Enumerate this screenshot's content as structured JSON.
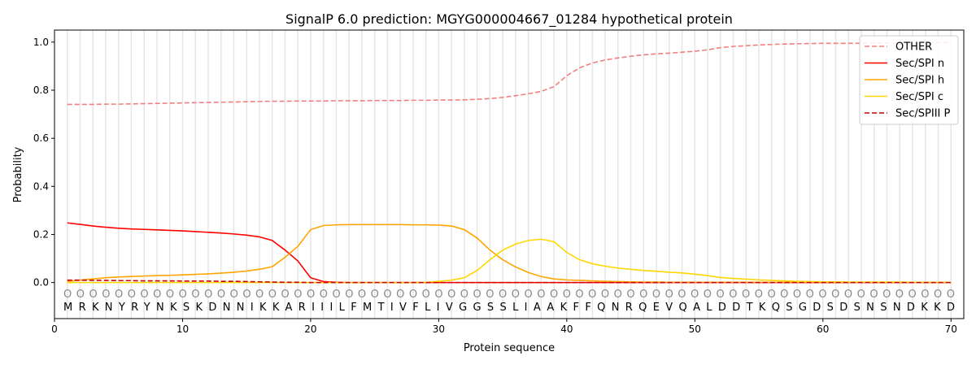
{
  "chart_data": {
    "type": "line",
    "title": "SignalP 6.0 prediction: MGYG000004667_01284 hypothetical protein",
    "xlabel": "Protein sequence",
    "ylabel": "Probability",
    "xlim": [
      0,
      71
    ],
    "ylim": [
      -0.15,
      1.05
    ],
    "xticks": [
      0,
      10,
      20,
      30,
      40,
      50,
      60,
      70
    ],
    "yticks": [
      "0.0",
      "0.2",
      "0.4",
      "0.6",
      "0.8",
      "1.0"
    ],
    "grid": "vertical lines at each residue",
    "legend_position": "top-right",
    "sequence": "MRKNYRYNKSKDNNIKKARIIILFMTIVFLIVGGSSLIAAKFFQNRQEVQALDDTKQSGDSDSNSNDKKD",
    "predicted_labels": "OOOOOOOOOOOOOOOOOOOOOOOOOOOOOOOOOOOOOOOOOOOOOOOOOOOOOOOOOOOOOOOOOOOOOO",
    "series": [
      {
        "name": "OTHER",
        "color": "#f08080",
        "dash": true,
        "values": [
          0.741,
          0.741,
          0.741,
          0.742,
          0.742,
          0.743,
          0.744,
          0.745,
          0.746,
          0.747,
          0.748,
          0.749,
          0.75,
          0.751,
          0.752,
          0.753,
          0.754,
          0.754,
          0.755,
          0.755,
          0.755,
          0.756,
          0.756,
          0.756,
          0.757,
          0.757,
          0.757,
          0.758,
          0.758,
          0.759,
          0.759,
          0.76,
          0.762,
          0.765,
          0.77,
          0.777,
          0.785,
          0.795,
          0.815,
          0.86,
          0.893,
          0.913,
          0.926,
          0.934,
          0.941,
          0.947,
          0.951,
          0.954,
          0.958,
          0.962,
          0.968,
          0.977,
          0.982,
          0.985,
          0.988,
          0.99,
          0.992,
          0.993,
          0.994,
          0.995,
          0.995,
          0.995,
          0.995,
          0.996,
          0.996,
          0.996,
          0.997,
          0.997,
          0.998,
          0.998
        ]
      },
      {
        "name": "Sec/SPI n",
        "color": "#ff0000",
        "dash": false,
        "values": [
          0.248,
          0.242,
          0.235,
          0.23,
          0.226,
          0.223,
          0.221,
          0.219,
          0.217,
          0.215,
          0.212,
          0.209,
          0.206,
          0.202,
          0.197,
          0.19,
          0.175,
          0.135,
          0.09,
          0.02,
          0.004,
          0.001,
          0,
          0,
          0,
          0,
          0,
          0,
          0,
          0,
          0,
          0,
          0,
          0,
          0,
          0,
          0,
          0,
          0,
          0,
          0,
          0,
          0,
          0,
          0,
          0,
          0,
          0,
          0,
          0,
          0,
          0,
          0,
          0,
          0,
          0,
          0,
          0,
          0,
          0,
          0,
          0,
          0,
          0,
          0,
          0,
          0,
          0,
          0,
          0
        ]
      },
      {
        "name": "Sec/SPI h",
        "color": "#ffa500",
        "dash": false,
        "values": [
          0.005,
          0.01,
          0.015,
          0.02,
          0.023,
          0.025,
          0.027,
          0.029,
          0.03,
          0.032,
          0.034,
          0.036,
          0.039,
          0.043,
          0.048,
          0.055,
          0.066,
          0.105,
          0.15,
          0.22,
          0.237,
          0.24,
          0.241,
          0.241,
          0.241,
          0.241,
          0.241,
          0.24,
          0.24,
          0.239,
          0.235,
          0.22,
          0.185,
          0.135,
          0.095,
          0.065,
          0.042,
          0.025,
          0.015,
          0.011,
          0.009,
          0.007,
          0.005,
          0.004,
          0.003,
          0.002,
          0.002,
          0.001,
          0.001,
          0.001,
          0.001,
          0.001,
          0.001,
          0.001,
          0.001,
          0.001,
          0.001,
          0.001,
          0.001,
          0.001,
          0.001,
          0.001,
          0.001,
          0.001,
          0.001,
          0.001,
          0.001,
          0.001,
          0.001,
          0.001
        ]
      },
      {
        "name": "Sec/SPI c",
        "color": "#ffd700",
        "dash": false,
        "values": [
          0,
          0,
          0,
          0,
          0,
          0,
          0,
          0,
          0,
          0,
          0,
          0,
          0,
          0,
          0,
          0,
          0,
          0,
          0,
          0,
          0,
          0,
          0,
          0,
          0,
          0,
          0,
          0,
          0.001,
          0.005,
          0.01,
          0.02,
          0.05,
          0.095,
          0.135,
          0.16,
          0.175,
          0.18,
          0.17,
          0.125,
          0.095,
          0.078,
          0.068,
          0.06,
          0.055,
          0.05,
          0.047,
          0.043,
          0.04,
          0.035,
          0.029,
          0.021,
          0.017,
          0.014,
          0.011,
          0.009,
          0.007,
          0.005,
          0.004,
          0.003,
          0.003,
          0.002,
          0.002,
          0.002,
          0.002,
          0.002,
          0.001,
          0.001,
          0.001,
          0.001
        ]
      },
      {
        "name": "Sec/SPIII P",
        "color": "#cc0000",
        "dash": true,
        "values": [
          0.01,
          0.01,
          0.009,
          0.009,
          0.008,
          0.008,
          0.007,
          0.007,
          0.007,
          0.006,
          0.006,
          0.006,
          0.005,
          0.005,
          0.004,
          0.003,
          0.002,
          0.001,
          0.001,
          0,
          0,
          0,
          0,
          0,
          0,
          0,
          0,
          0,
          0,
          0,
          0,
          0,
          0,
          0,
          0,
          0,
          0,
          0,
          0,
          0,
          0,
          0,
          0,
          0,
          0,
          0,
          0,
          0,
          0,
          0,
          0,
          0,
          0,
          0,
          0,
          0,
          0,
          0,
          0,
          0,
          0,
          0,
          0,
          0,
          0,
          0,
          0,
          0,
          0,
          0
        ]
      }
    ]
  }
}
